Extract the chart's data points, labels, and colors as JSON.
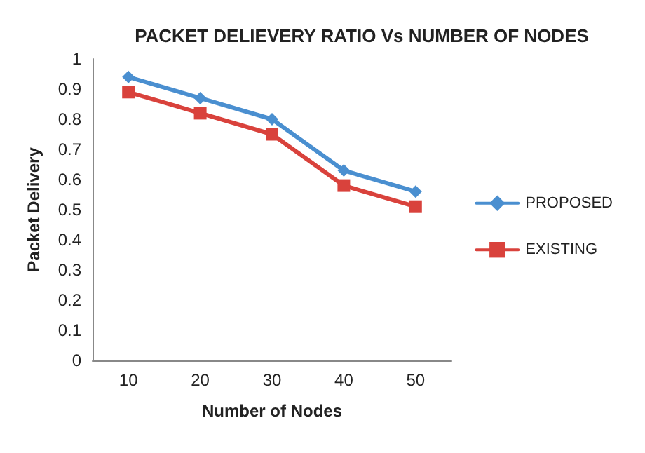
{
  "chart_data": {
    "type": "line",
    "title": "PACKET DELIEVERY RATIO Vs NUMBER OF NODES",
    "xlabel": "Number of Nodes",
    "ylabel": "Packet Delivery",
    "categories": [
      "10",
      "20",
      "30",
      "40",
      "50"
    ],
    "series": [
      {
        "name": "PROPOSED",
        "color": "#4a8fd0",
        "marker": "diamond",
        "values": [
          0.94,
          0.87,
          0.8,
          0.63,
          0.56
        ]
      },
      {
        "name": "EXISTING",
        "color": "#d9423c",
        "marker": "square",
        "values": [
          0.89,
          0.82,
          0.75,
          0.58,
          0.51
        ]
      }
    ],
    "ylim": [
      0,
      1
    ],
    "yticks": [
      0,
      0.1,
      0.2,
      0.3,
      0.4,
      0.5,
      0.6,
      0.7,
      0.8,
      0.9,
      1
    ],
    "grid": false,
    "legend": "right",
    "line_style": "solid"
  }
}
